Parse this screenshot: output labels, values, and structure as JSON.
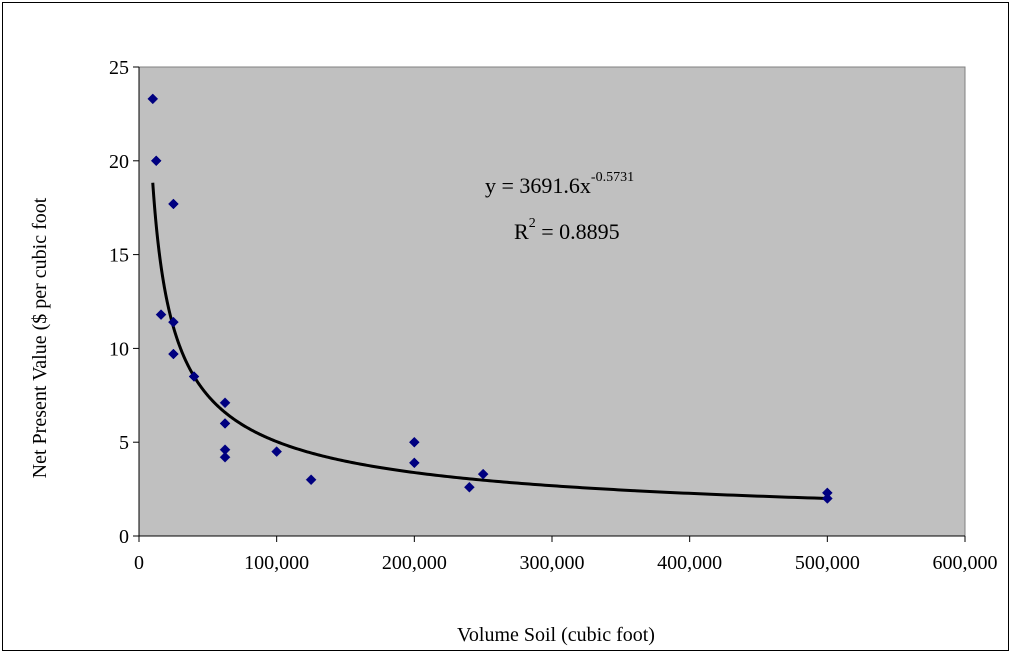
{
  "chart_data": {
    "type": "scatter",
    "xlabel": "Volume Soil (cubic foot)",
    "ylabel": "Net Present Value ($ per cubic foot",
    "xlim": [
      0,
      600000
    ],
    "ylim": [
      0,
      25
    ],
    "x_ticks": [
      0,
      100000,
      200000,
      300000,
      400000,
      500000,
      600000
    ],
    "x_tick_labels": [
      "0",
      "100,000",
      "200,000",
      "300,000",
      "400,000",
      "500,000",
      "600,000"
    ],
    "y_ticks": [
      0,
      5,
      10,
      15,
      20,
      25
    ],
    "y_tick_labels": [
      "0",
      "5",
      "10",
      "15",
      "20",
      "25"
    ],
    "grid": false,
    "legend": "none",
    "plot_background": "#c0c0c0",
    "point_color": "#000080",
    "trendline_color": "#000000",
    "points": [
      {
        "x": 10000,
        "y": 23.3
      },
      {
        "x": 12500,
        "y": 20.0
      },
      {
        "x": 25000,
        "y": 17.7
      },
      {
        "x": 16000,
        "y": 11.8
      },
      {
        "x": 25000,
        "y": 11.4
      },
      {
        "x": 25000,
        "y": 9.7
      },
      {
        "x": 40000,
        "y": 8.5
      },
      {
        "x": 62500,
        "y": 7.1
      },
      {
        "x": 62500,
        "y": 6.0
      },
      {
        "x": 62500,
        "y": 4.6
      },
      {
        "x": 62500,
        "y": 4.2
      },
      {
        "x": 100000,
        "y": 4.5
      },
      {
        "x": 125000,
        "y": 3.0
      },
      {
        "x": 200000,
        "y": 5.0
      },
      {
        "x": 200000,
        "y": 3.9
      },
      {
        "x": 240000,
        "y": 2.6
      },
      {
        "x": 250000,
        "y": 3.3
      },
      {
        "x": 500000,
        "y": 2.3
      },
      {
        "x": 500000,
        "y": 2.0
      }
    ],
    "trendline": {
      "type": "power",
      "coefficient": 3691.6,
      "exponent": -0.5731,
      "x_from": 10000,
      "x_to": 500000,
      "equation_base": "y = 3691.6x",
      "equation_exponent": "-0.5731",
      "r2_base": "R",
      "r2_exponent": "2",
      "r2_value": " = 0.8895"
    }
  }
}
